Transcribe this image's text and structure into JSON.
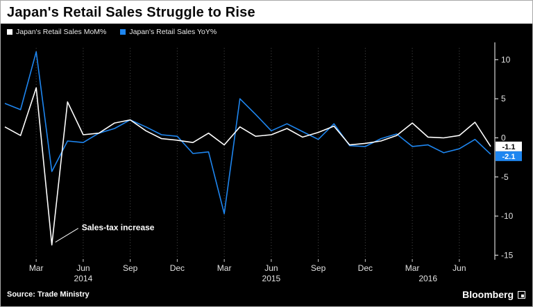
{
  "title": "Japan's Retail Sales Struggle to Rise",
  "source": "Source: Trade Ministry",
  "brand": "Bloomberg",
  "legend": {
    "items": [
      {
        "label": "Japan's Retail Sales MoM%",
        "color": "#ffffff"
      },
      {
        "label": "Japan's Retail Sales YoY%",
        "color": "#1e86f0"
      }
    ]
  },
  "end_labels": [
    {
      "text": "-1.1",
      "value": -1.1,
      "bg": "#ffffff",
      "fg": "#000000"
    },
    {
      "text": "-2.1",
      "value": -2.1,
      "bg": "#1e86f0",
      "fg": "#ffffff"
    }
  ],
  "chart_data": {
    "type": "line",
    "x": [
      "Jan 2014",
      "Feb 2014",
      "Mar 2014",
      "Apr 2014",
      "May 2014",
      "Jun 2014",
      "Jul 2014",
      "Aug 2014",
      "Sep 2014",
      "Oct 2014",
      "Nov 2014",
      "Dec 2014",
      "Jan 2015",
      "Feb 2015",
      "Mar 2015",
      "Apr 2015",
      "May 2015",
      "Jun 2015",
      "Jul 2015",
      "Aug 2015",
      "Sep 2015",
      "Oct 2015",
      "Nov 2015",
      "Dec 2015",
      "Jan 2016",
      "Feb 2016",
      "Mar 2016",
      "Apr 2016",
      "May 2016",
      "Jun 2016",
      "Jul 2016",
      "Aug 2016"
    ],
    "series": [
      {
        "name": "Japan's Retail Sales MoM%",
        "color": "#ffffff",
        "values": [
          1.4,
          0.3,
          6.4,
          -13.7,
          4.6,
          0.4,
          0.6,
          1.9,
          2.3,
          0.9,
          -0.1,
          -0.3,
          -0.6,
          0.6,
          -0.9,
          1.4,
          0.2,
          0.4,
          1.2,
          0.1,
          0.7,
          1.5,
          -0.9,
          -0.7,
          -0.4,
          0.3,
          1.9,
          0.1,
          0.0,
          0.3,
          2.0,
          -1.1
        ]
      },
      {
        "name": "Japan's Retail Sales YoY%",
        "color": "#1e86f0",
        "values": [
          4.4,
          3.6,
          11.0,
          -4.3,
          -0.4,
          -0.6,
          0.6,
          1.2,
          2.3,
          1.4,
          0.4,
          0.2,
          -2.0,
          -1.8,
          -9.7,
          5.0,
          3.0,
          0.9,
          1.8,
          0.8,
          -0.2,
          1.8,
          -1.0,
          -1.1,
          -0.1,
          0.5,
          -1.1,
          -0.9,
          -1.9,
          -1.4,
          -0.2,
          -2.1
        ]
      }
    ],
    "xticks": [
      {
        "index": 2,
        "label": "Mar"
      },
      {
        "index": 5,
        "label": "Jun"
      },
      {
        "index": 8,
        "label": "Sep"
      },
      {
        "index": 11,
        "label": "Dec"
      },
      {
        "index": 14,
        "label": "Mar"
      },
      {
        "index": 17,
        "label": "Jun"
      },
      {
        "index": 20,
        "label": "Sep"
      },
      {
        "index": 23,
        "label": "Dec"
      },
      {
        "index": 26,
        "label": "Mar"
      },
      {
        "index": 29,
        "label": "Jun"
      }
    ],
    "year_labels": [
      {
        "index": 5,
        "label": "2014"
      },
      {
        "index": 17,
        "label": "2015"
      },
      {
        "index": 27,
        "label": "2016"
      }
    ],
    "yticks": [
      10,
      5,
      0,
      -5,
      -10,
      -15
    ],
    "ylim": [
      -15.5,
      11.5
    ],
    "grid": "vertical-dotted",
    "legend_position": "top-left",
    "annotation": {
      "text": "Sales-tax increase",
      "x_index": 3,
      "y_value": -13.7
    }
  }
}
